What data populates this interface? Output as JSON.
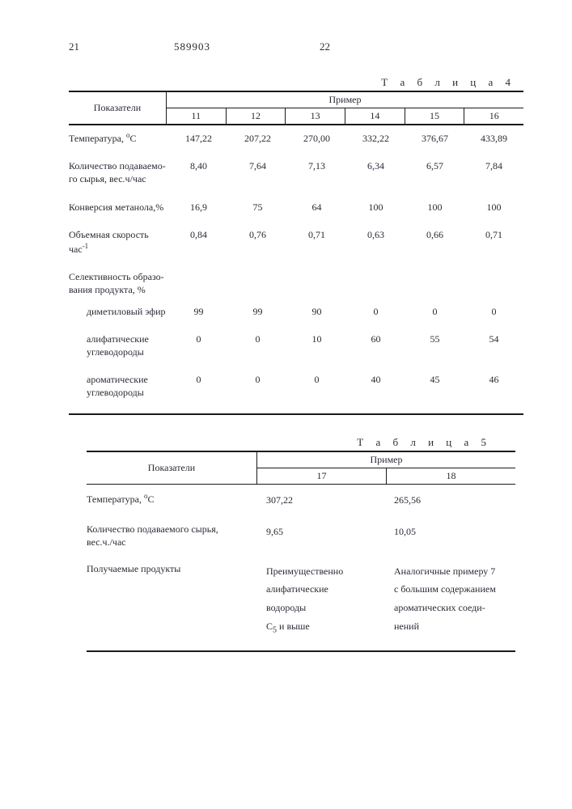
{
  "header": {
    "page_left": "21",
    "doc_number": "589903",
    "page_right": "22"
  },
  "table4": {
    "title": "Т а б л и ц а   4",
    "indicators_label": "Показатели",
    "primer_label": "Пример",
    "col_headers": [
      "11",
      "12",
      "13",
      "14",
      "15",
      "16"
    ],
    "rows": {
      "temperature": {
        "label": "Температура, °C",
        "values": [
          "147,22",
          "207,22",
          "270,00",
          "332,22",
          "376,67",
          "433,89"
        ]
      },
      "feed_rate": {
        "label": "Количество подаваемого сырья, вес.ч/час",
        "values": [
          "8,40",
          "7,64",
          "7,13",
          "6,34",
          "6,57",
          "7,84"
        ]
      },
      "conversion": {
        "label": "Конверсия метанола,%",
        "values": [
          "16,9",
          "75",
          "64",
          "100",
          "100",
          "100"
        ]
      },
      "space_vel": {
        "label": "Объемная скорость час⁻¹",
        "values": [
          "0,84",
          "0,76",
          "0,71",
          "0,63",
          "0,66",
          "0,71"
        ]
      },
      "selectivity_hdr": "Селективность образования продукта, %",
      "dme": {
        "label": "диметиловый эфир",
        "values": [
          "99",
          "99",
          "90",
          "0",
          "0",
          "0"
        ]
      },
      "aliphatic": {
        "label": "алифатические углеводороды",
        "values": [
          "0",
          "0",
          "10",
          "60",
          "55",
          "54"
        ]
      },
      "aromatic": {
        "label": "ароматические углеводороды",
        "values": [
          "0",
          "0",
          "0",
          "40",
          "45",
          "46"
        ]
      }
    }
  },
  "table5": {
    "title": "Т а б л и ц а   5",
    "indicators_label": "Показатели",
    "primer_label": "Пример",
    "col_headers": [
      "17",
      "18"
    ],
    "rows": {
      "temperature": {
        "label": "Температура, °C",
        "values": [
          "307,22",
          "265,56"
        ]
      },
      "feed_rate": {
        "label": "Количество подаваемого сырья, вес.ч./час",
        "values": [
          "9,65",
          "10,05"
        ]
      },
      "products": {
        "label": "Получаемые продукты",
        "values": [
          "Преимущественно алифатические водороды C₅ и выше",
          "Аналогичные примеру 7 с большим содержанием ароматических соединений"
        ]
      }
    }
  }
}
